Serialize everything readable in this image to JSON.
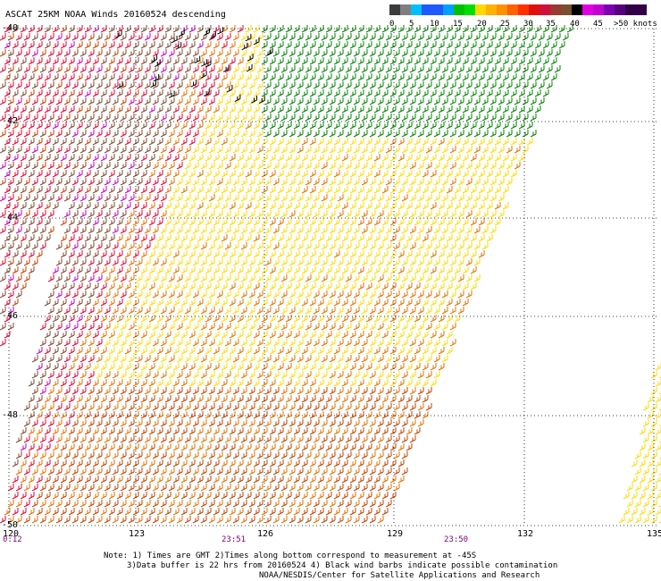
{
  "title": "ASCAT 25KM NOAA Winds 20160524 descending",
  "legend": {
    "labels": [
      "0",
      "5",
      "10",
      "15",
      "20",
      "25",
      "30",
      "35",
      "40",
      "45"
    ],
    "unit_label": ">50 knots",
    "colors": [
      "#3c3c3c",
      "#7f7f7f",
      "#00bfff",
      "#1e5aff",
      "#00c000",
      "#ffd800",
      "#ff9000",
      "#ff2000",
      "#d0103c",
      "#7a5030",
      "#000000",
      "#e000e0",
      "#7a00b0",
      "#320046"
    ]
  },
  "lon_labels": [
    "120",
    "123",
    "126",
    "129",
    "132",
    "135"
  ],
  "lat_labels": [
    "-40",
    "-42",
    "-44",
    "-46",
    "-48",
    "-50"
  ],
  "times": [
    "0:12",
    "23:51",
    "23:50"
  ],
  "notes": {
    "line1": "Note: 1) Times are GMT 2)Times along bottom correspond to measurement at -45S",
    "line2": "3)Data buffer is 22 hrs from 20160524 4) Black wind barbs indicate possible contamination",
    "line3": "NOAA/NESDIS/Center for Satellite Applications and Research"
  },
  "palette": {
    "yellow": "#ffd800",
    "orange": "#e07000",
    "darkorange": "#c04000",
    "red": "#e00030",
    "brown": "#7a4a30",
    "green": "#008000",
    "magenta": "#c000c0",
    "black": "#000000"
  }
}
